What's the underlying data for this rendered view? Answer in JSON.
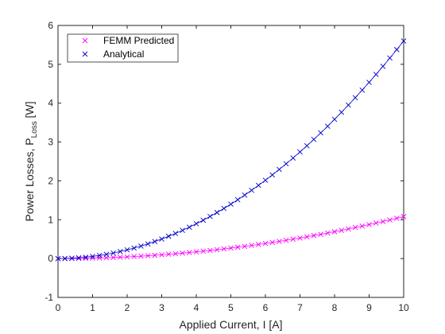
{
  "chart_data": {
    "type": "scatter",
    "xlabel": "Applied Current, I [A]",
    "ylabel": {
      "main": "Power Losses, P",
      "subscript": "Loss",
      "unit": " [W]"
    },
    "xlim": [
      0,
      10
    ],
    "ylim": [
      -1,
      6
    ],
    "xticks": [
      "0",
      "1",
      "2",
      "3",
      "4",
      "5",
      "6",
      "7",
      "8",
      "9",
      "10"
    ],
    "yticks": [
      "-1",
      "0",
      "1",
      "2",
      "3",
      "4",
      "5",
      "6"
    ],
    "grid": false,
    "legend_position": "top-left",
    "x": [
      0,
      0.2,
      0.4,
      0.6,
      0.8,
      1,
      1.2,
      1.4,
      1.6,
      1.8,
      2,
      2.2,
      2.4,
      2.6,
      2.8,
      3,
      3.2,
      3.4,
      3.6,
      3.8,
      4,
      4.2,
      4.4,
      4.6,
      4.8,
      5,
      5.2,
      5.4,
      5.6,
      5.8,
      6,
      6.2,
      6.4,
      6.6,
      6.8,
      7,
      7.2,
      7.4,
      7.6,
      7.8,
      8,
      8.2,
      8.4,
      8.6,
      8.8,
      9,
      9.2,
      9.4,
      9.6,
      9.8,
      10
    ],
    "series": [
      {
        "name": "FEMM Predicted",
        "color": "#ff00ff",
        "marker": "x",
        "values": [
          0,
          0.0004,
          0.0017,
          0.0039,
          0.0069,
          0.0108,
          0.0156,
          0.0212,
          0.0277,
          0.035,
          0.0432,
          0.0523,
          0.0622,
          0.073,
          0.0847,
          0.0972,
          0.1106,
          0.1249,
          0.14,
          0.156,
          0.1728,
          0.1905,
          0.2091,
          0.2286,
          0.2488,
          0.27,
          0.292,
          0.3149,
          0.3387,
          0.3633,
          0.3888,
          0.4152,
          0.4424,
          0.4705,
          0.4994,
          0.5292,
          0.5599,
          0.5914,
          0.6238,
          0.6571,
          0.6912,
          0.7262,
          0.7621,
          0.7988,
          0.8364,
          0.8748,
          0.9141,
          0.9543,
          0.9953,
          1.0372,
          1.08
        ]
      },
      {
        "name": "Analytical",
        "color": "#0000cc",
        "marker": "x",
        "values": [
          0,
          0.0022,
          0.009,
          0.0202,
          0.0358,
          0.056,
          0.0806,
          0.1098,
          0.1434,
          0.1814,
          0.224,
          0.271,
          0.3226,
          0.3786,
          0.439,
          0.504,
          0.5734,
          0.6474,
          0.7258,
          0.8086,
          0.896,
          0.9878,
          1.0842,
          1.185,
          1.2902,
          1.4,
          1.5142,
          1.633,
          1.7562,
          1.8838,
          2.016,
          2.1526,
          2.2938,
          2.4394,
          2.5894,
          2.744,
          2.903,
          3.0666,
          3.2346,
          3.407,
          3.584,
          3.7654,
          3.9514,
          4.1418,
          4.3366,
          4.536,
          4.7398,
          4.9482,
          5.161,
          5.3782,
          5.6
        ]
      }
    ]
  }
}
